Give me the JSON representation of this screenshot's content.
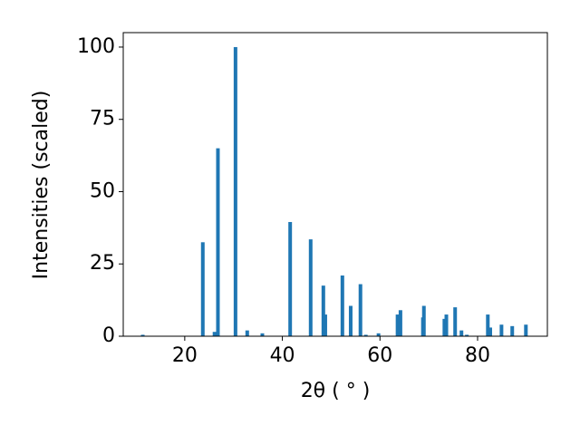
{
  "chart_data": {
    "type": "bar",
    "xlabel": "2θ ( ° )",
    "ylabel": "Intensities (scaled)",
    "x": [
      11.4,
      23.7,
      26.1,
      26.8,
      30.4,
      32.8,
      35.9,
      41.6,
      45.8,
      48.4,
      48.8,
      52.3,
      54.0,
      56.0,
      57.1,
      59.7,
      63.6,
      64.2,
      68.8,
      69.0,
      73.2,
      73.6,
      75.4,
      76.7,
      77.8,
      82.1,
      82.6,
      84.9,
      87.1,
      89.9
    ],
    "values": [
      0.5,
      32.5,
      1.5,
      65,
      100,
      2,
      1,
      39.5,
      33.5,
      17.5,
      7.5,
      21,
      10.5,
      18,
      0.5,
      1,
      7.5,
      9,
      6.5,
      10.5,
      6,
      7.5,
      10,
      2,
      0.5,
      7.5,
      3,
      4,
      3.5,
      4
    ],
    "color": "#1f77b4",
    "xlim": [
      7.4,
      94.3
    ],
    "ylim": [
      0,
      105
    ],
    "xticks": [
      20,
      40,
      60,
      80
    ],
    "yticks": [
      0,
      25,
      50,
      75,
      100
    ]
  }
}
